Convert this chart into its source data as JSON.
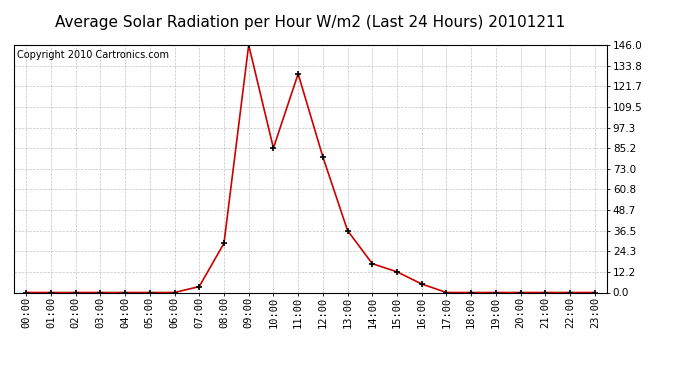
{
  "title": "Average Solar Radiation per Hour W/m2 (Last 24 Hours) 20101211",
  "copyright": "Copyright 2010 Cartronics.com",
  "hours": [
    "00:00",
    "01:00",
    "02:00",
    "03:00",
    "04:00",
    "05:00",
    "06:00",
    "07:00",
    "08:00",
    "09:00",
    "10:00",
    "11:00",
    "12:00",
    "13:00",
    "14:00",
    "15:00",
    "16:00",
    "17:00",
    "18:00",
    "19:00",
    "20:00",
    "21:00",
    "22:00",
    "23:00"
  ],
  "values": [
    0.0,
    0.0,
    0.0,
    0.0,
    0.0,
    0.0,
    0.0,
    3.5,
    29.0,
    146.0,
    85.2,
    129.0,
    80.0,
    36.5,
    17.0,
    12.2,
    5.0,
    0.0,
    0.0,
    0.0,
    0.0,
    0.0,
    0.0,
    0.0
  ],
  "y_ticks": [
    0.0,
    12.2,
    24.3,
    36.5,
    48.7,
    60.8,
    73.0,
    85.2,
    97.3,
    109.5,
    121.7,
    133.8,
    146.0
  ],
  "ymax": 146.0,
  "ymin": 0.0,
  "line_color": "#CC0000",
  "marker_color": "#000000",
  "bg_color": "#FFFFFF",
  "grid_color": "#AAAAAA",
  "title_fontsize": 11,
  "copyright_fontsize": 7,
  "tick_fontsize": 7.5
}
